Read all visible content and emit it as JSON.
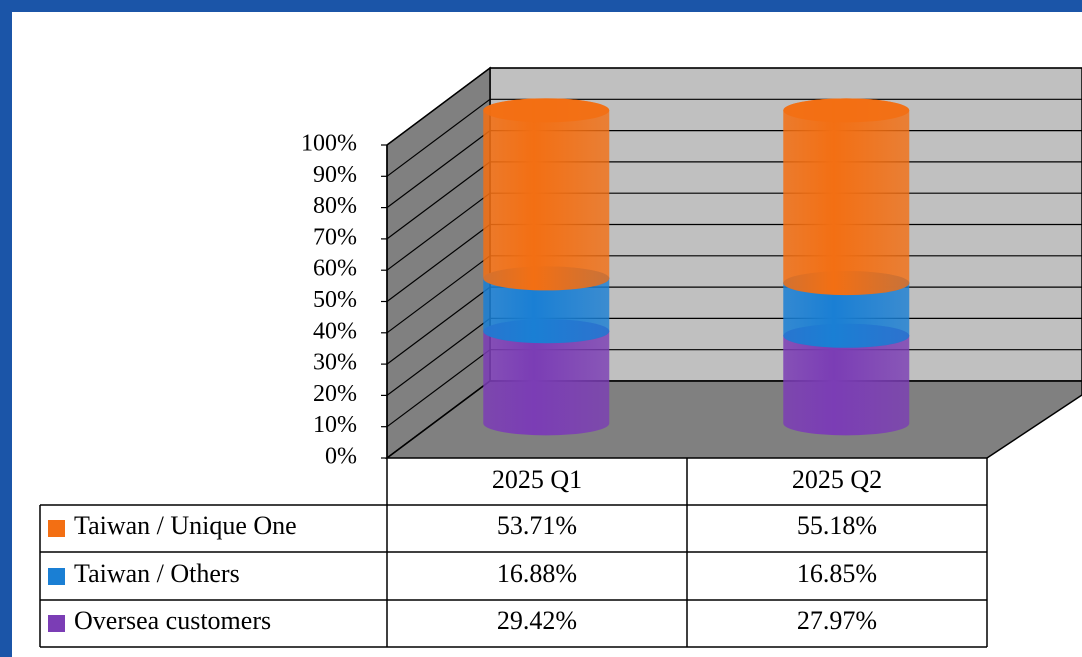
{
  "chart_data": {
    "type": "cylinder3d_stacked",
    "categories": [
      "2025 Q1",
      "2025 Q2"
    ],
    "series": [
      {
        "name": "Taiwan / Unique One",
        "color": "#f36f13",
        "values": [
          53.71,
          55.18
        ],
        "value_labels": [
          "53.71%",
          "55.18%"
        ]
      },
      {
        "name": "Taiwan / Others",
        "color": "#1a7fd4",
        "values": [
          16.88,
          16.85
        ],
        "value_labels": [
          "16.88%",
          "16.85%"
        ]
      },
      {
        "name": "Oversea customers",
        "color": "#7b3db5",
        "values": [
          29.42,
          27.97
        ],
        "value_labels": [
          "29.42%",
          "27.97%"
        ]
      }
    ],
    "ylim": [
      0,
      100
    ],
    "yticks": [
      {
        "value": 0,
        "label": "0%"
      },
      {
        "value": 10,
        "label": "10%"
      },
      {
        "value": 20,
        "label": "20%"
      },
      {
        "value": 30,
        "label": "30%"
      },
      {
        "value": 40,
        "label": "40%"
      },
      {
        "value": 50,
        "label": "50%"
      },
      {
        "value": 60,
        "label": "60%"
      },
      {
        "value": 70,
        "label": "70%"
      },
      {
        "value": 80,
        "label": "80%"
      },
      {
        "value": 90,
        "label": "90%"
      },
      {
        "value": 100,
        "label": "100%"
      }
    ],
    "grid": true
  }
}
